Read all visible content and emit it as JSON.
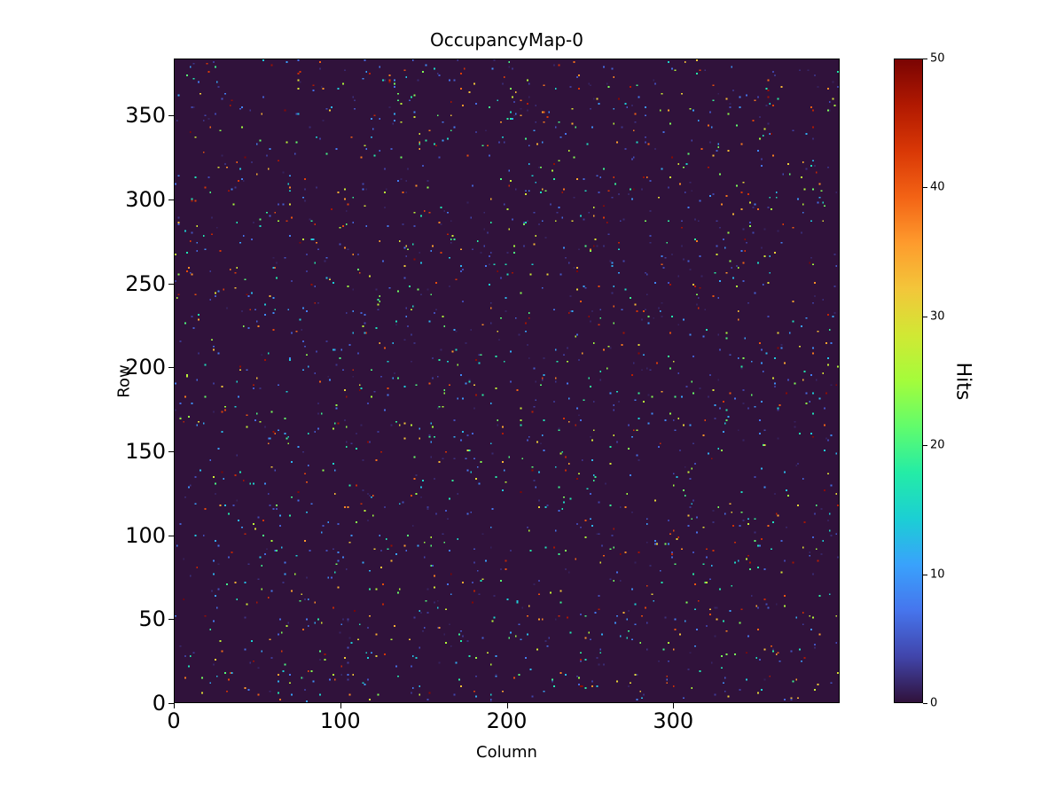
{
  "figure": {
    "background_color": "#ffffff",
    "text_color": "#000000"
  },
  "chart_data": {
    "type": "heatmap",
    "title": "OccupancyMap-0",
    "xlabel": "Column",
    "ylabel": "Row",
    "x_range": [
      0,
      400
    ],
    "y_range": [
      0,
      384
    ],
    "x_ticks": [
      0,
      100,
      200,
      300
    ],
    "y_ticks": [
      0,
      50,
      100,
      150,
      200,
      250,
      300,
      350
    ],
    "grid_cols": 400,
    "grid_rows": 384,
    "background_value": 0,
    "legend_position": "none",
    "grid": false,
    "colorbar": {
      "label": "Hits",
      "range": [
        0,
        50
      ],
      "ticks": [
        0,
        10,
        20,
        30,
        40,
        50
      ],
      "colormap": "turbo",
      "stops": [
        "#30123b",
        "#4145ab",
        "#4675ed",
        "#39a2fc",
        "#1bcfd4",
        "#24eca6",
        "#61fc6c",
        "#a4fc3b",
        "#d1e834",
        "#f3c63a",
        "#fe9b2d",
        "#f36315",
        "#d93806",
        "#b11901",
        "#7a0403"
      ]
    },
    "sparse_hits": {
      "description": "sparse random single-pixel hits over a uniform zero-valued background",
      "count": 2200,
      "value_min": 1,
      "value_max": 50,
      "distribution_skew_exponent": 2,
      "seed": 42
    }
  }
}
